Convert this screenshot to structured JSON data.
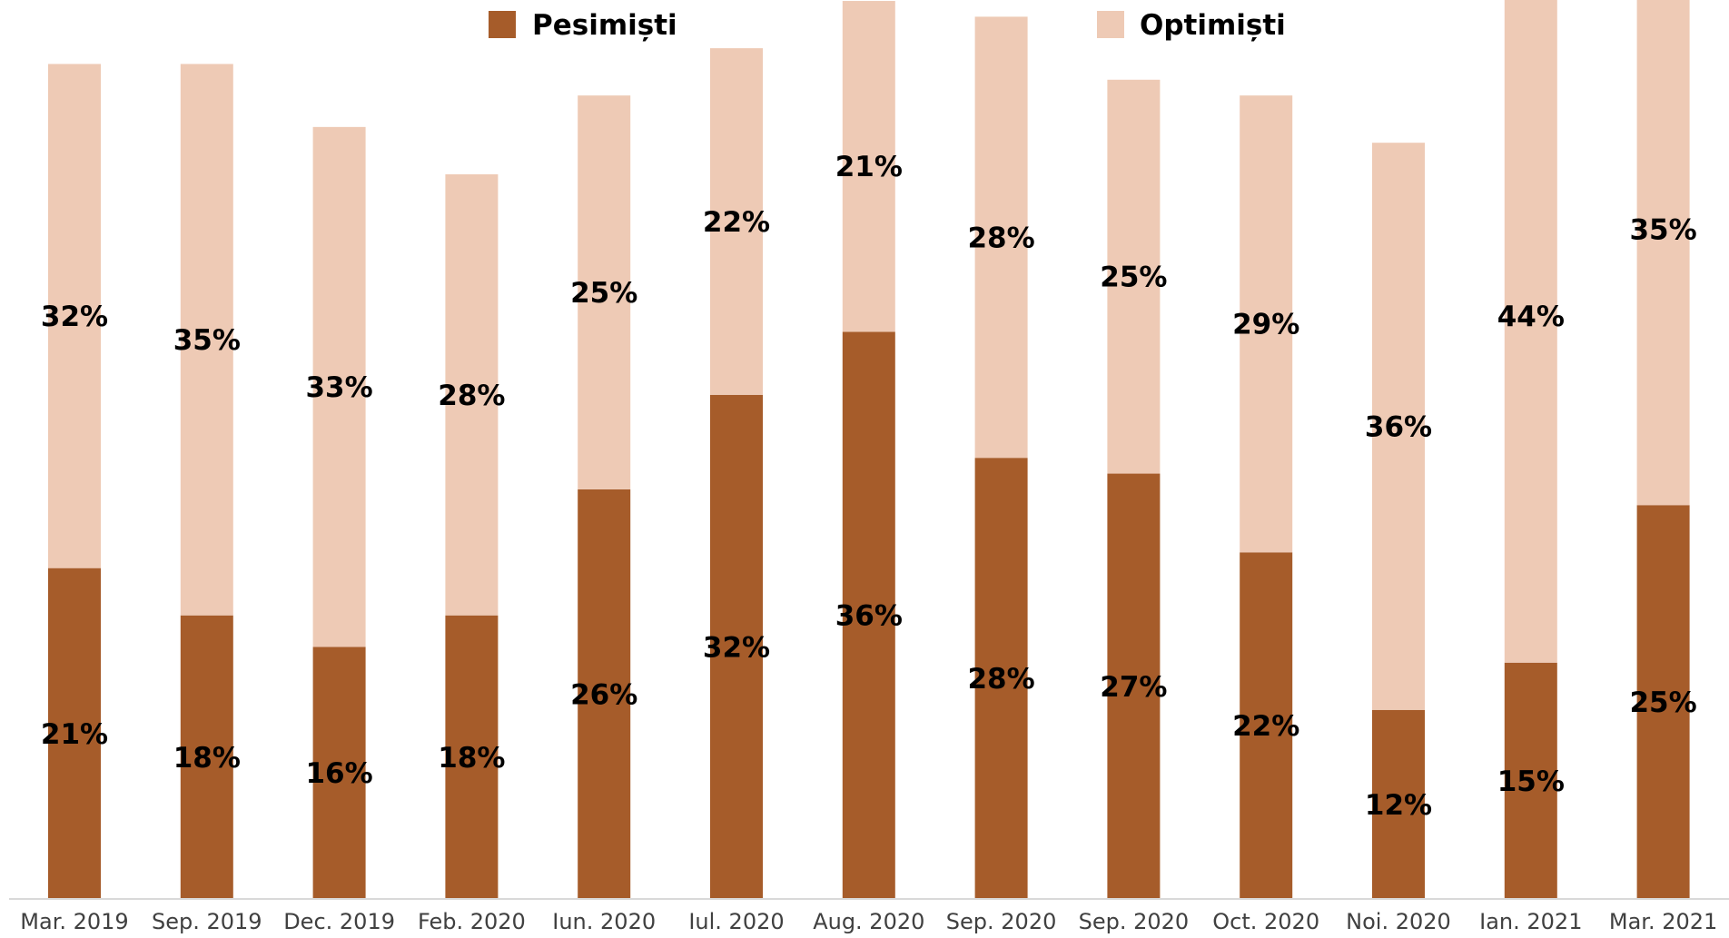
{
  "chart_data": {
    "type": "bar",
    "stacked": true,
    "categories": [
      "Mar. 2019",
      "Sep. 2019",
      "Dec. 2019",
      "Feb. 2020",
      "Iun. 2020",
      "Iul. 2020",
      "Aug. 2020",
      "Sep. 2020",
      "Sep. 2020",
      "Oct. 2020",
      "Noi. 2020",
      "Ian. 2021",
      "Mar. 2021"
    ],
    "series": [
      {
        "name": "Pesimiști",
        "color": "#a65c2a",
        "values": [
          21,
          18,
          16,
          18,
          26,
          32,
          36,
          28,
          27,
          22,
          12,
          15,
          25
        ],
        "labels": [
          "21%",
          "18%",
          "16%",
          "18%",
          "26%",
          "32%",
          "36%",
          "28%",
          "27%",
          "22%",
          "12%",
          "15%",
          "25%"
        ]
      },
      {
        "name": "Optimiști",
        "color": "#eecab5",
        "values": [
          32,
          35,
          33,
          28,
          25,
          22,
          21,
          28,
          25,
          29,
          36,
          44,
          35
        ],
        "labels": [
          "32%",
          "35%",
          "33%",
          "28%",
          "25%",
          "22%",
          "21%",
          "28%",
          "25%",
          "29%",
          "36%",
          "44%",
          "35%"
        ]
      }
    ],
    "title": "",
    "xlabel": "",
    "ylabel": "",
    "ylim": [
      0,
      60
    ],
    "grid": false,
    "legend": "top",
    "axis_color": "#d9d9d9"
  }
}
